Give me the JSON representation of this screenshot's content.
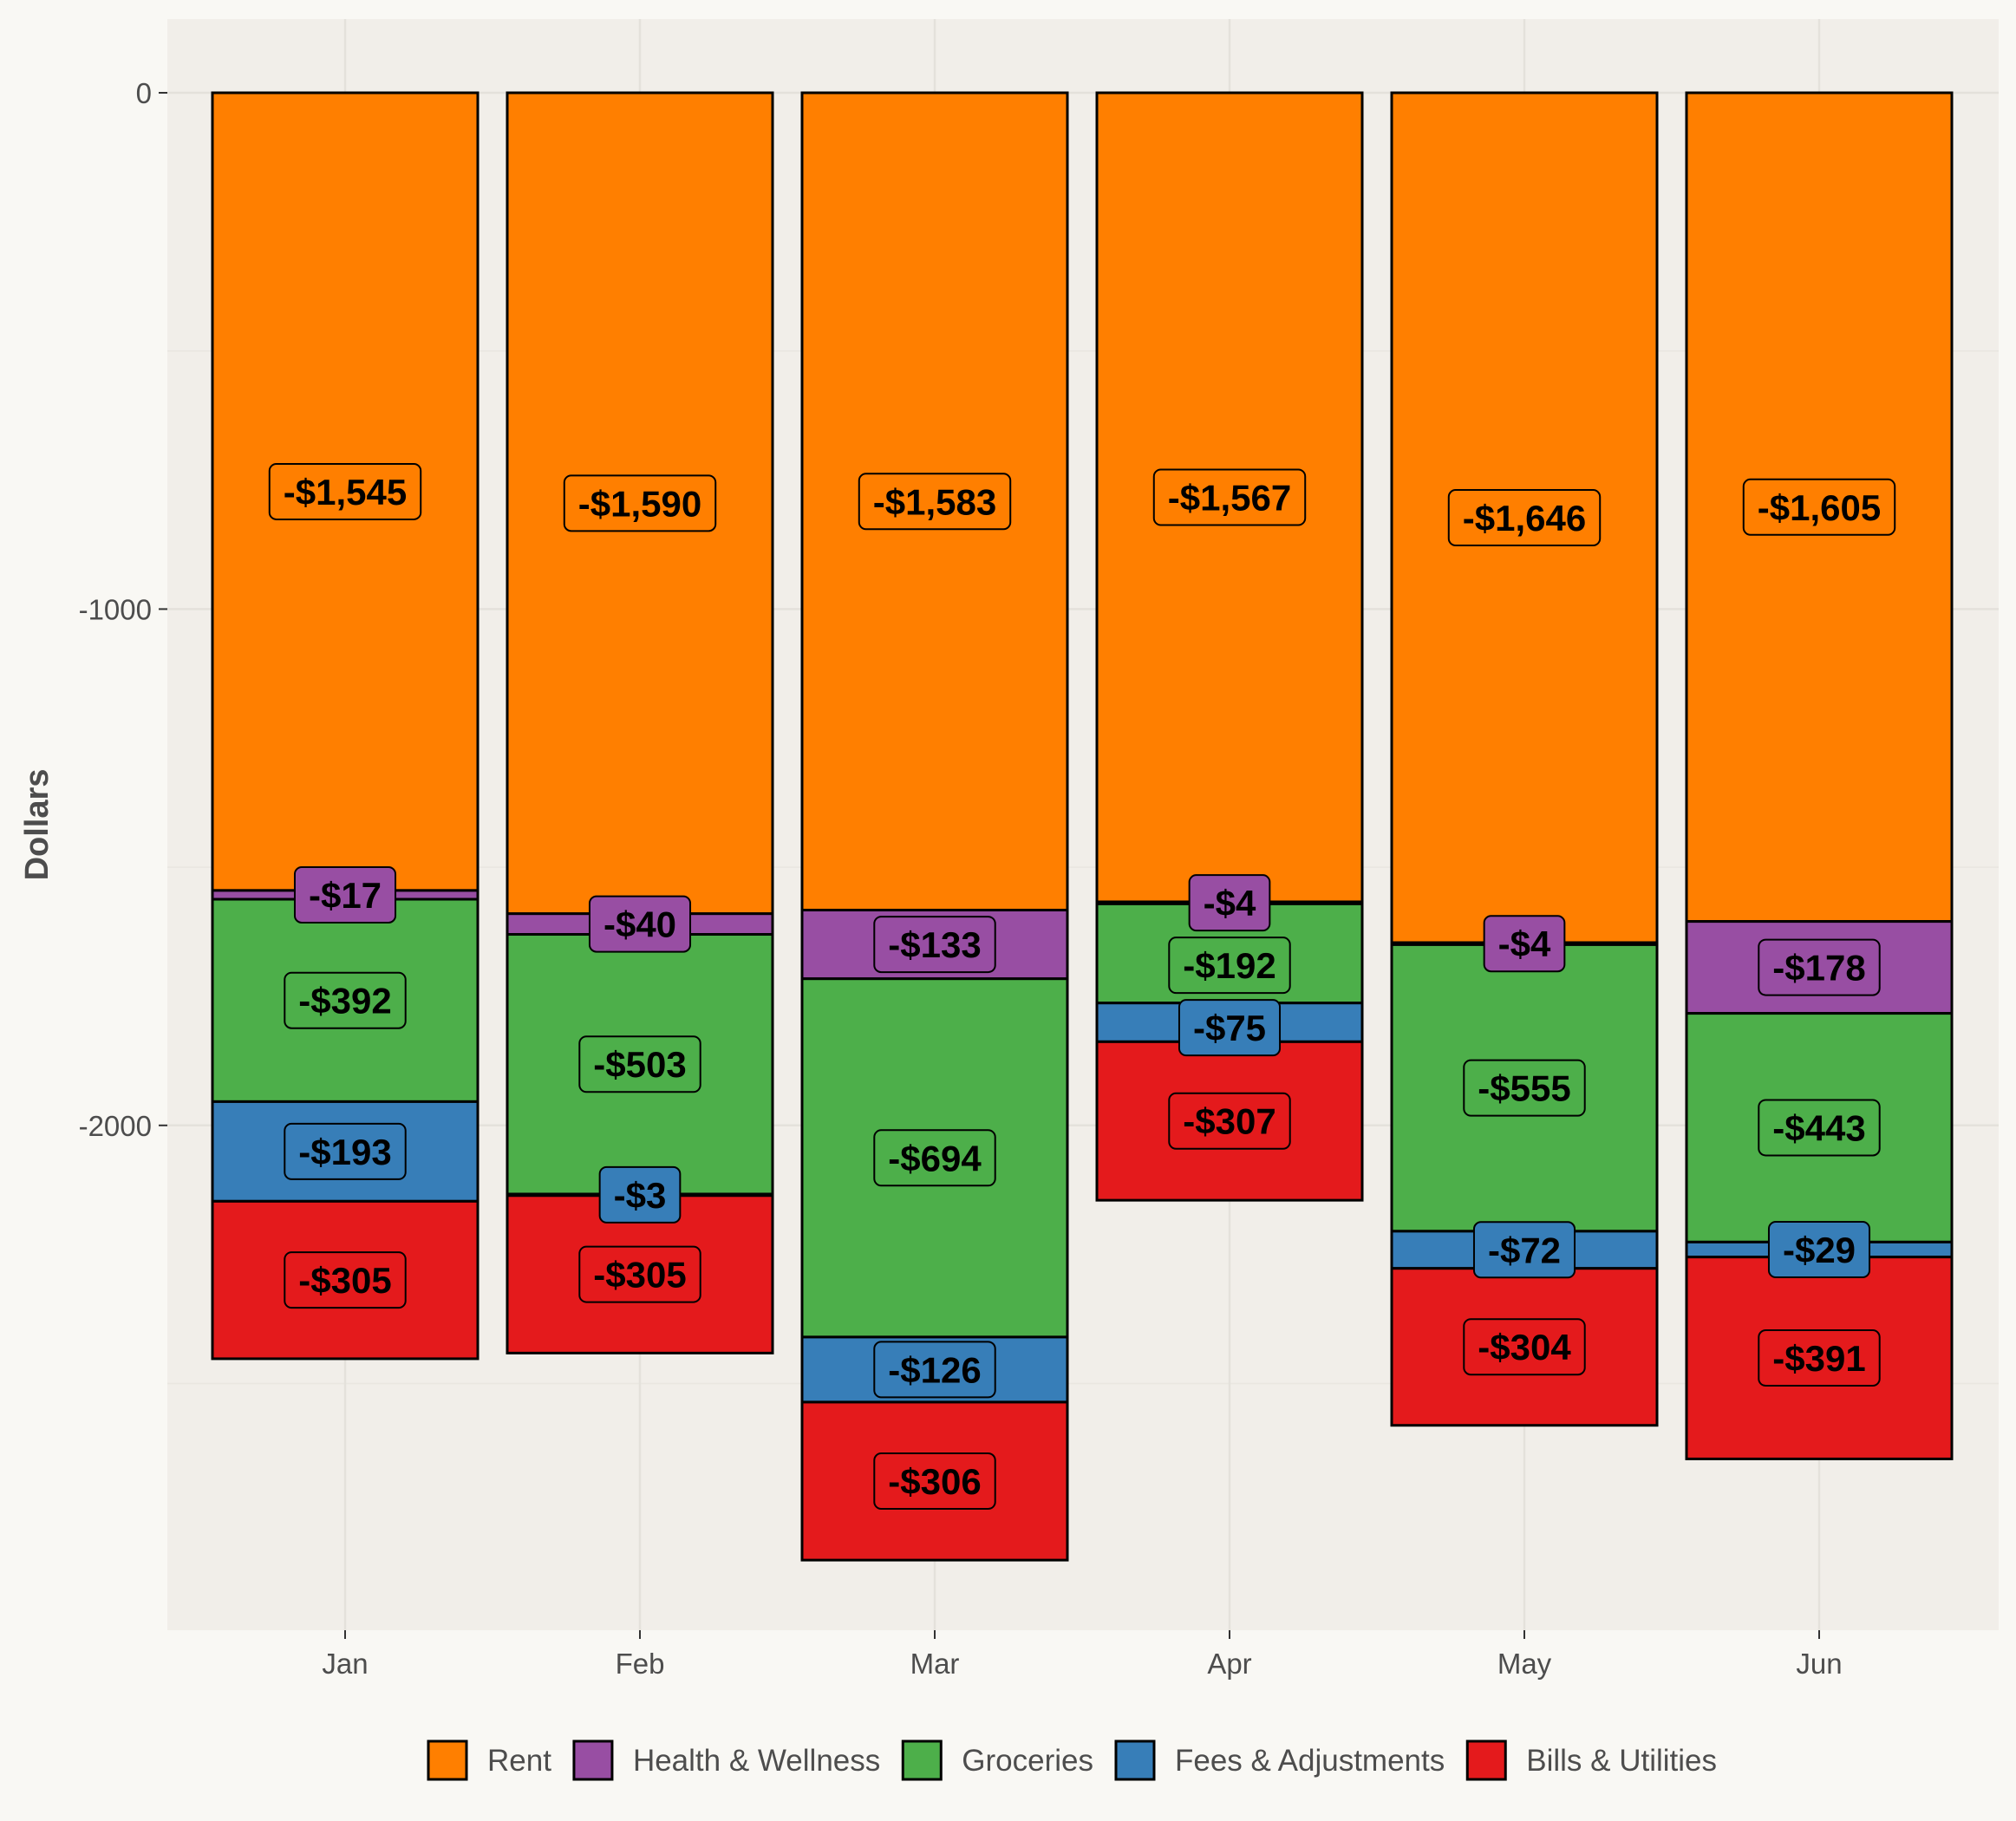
{
  "chart_data": {
    "type": "bar",
    "stacked": true,
    "title": "",
    "xlabel": "",
    "ylabel": "Dollars",
    "ylim": [
      -2975,
      135
    ],
    "yticks": [
      0,
      -1000,
      -2000
    ],
    "grid": true,
    "legend_position": "bottom",
    "categories": [
      "Jan",
      "Feb",
      "Mar",
      "Apr",
      "May",
      "Jun"
    ],
    "series": [
      {
        "name": "Rent",
        "color": "#ff7f00",
        "values": [
          -1545,
          -1590,
          -1583,
          -1567,
          -1646,
          -1605
        ],
        "labels": [
          "-$1,545",
          "-$1,590",
          "-$1,583",
          "-$1,567",
          "-$1,646",
          "-$1,605"
        ]
      },
      {
        "name": "Health & Wellness",
        "color": "#984ea3",
        "values": [
          -17,
          -40,
          -133,
          -4,
          -4,
          -178
        ],
        "labels": [
          "-$17",
          "-$40",
          "-$133",
          "-$4",
          "-$4",
          "-$178"
        ]
      },
      {
        "name": "Groceries",
        "color": "#4daf4a",
        "values": [
          -392,
          -503,
          -694,
          -192,
          -555,
          -443
        ],
        "labels": [
          "-$392",
          "-$503",
          "-$694",
          "-$192",
          "-$555",
          "-$443"
        ]
      },
      {
        "name": "Fees & Adjustments",
        "color": "#377eb8",
        "values": [
          -193,
          -3,
          -126,
          -75,
          -72,
          -29
        ],
        "labels": [
          "-$193",
          "-$3",
          "-$126",
          "-$75",
          "-$72",
          "-$29"
        ]
      },
      {
        "name": "Bills & Utilities",
        "color": "#e41a1c",
        "values": [
          -305,
          -305,
          -306,
          -307,
          -304,
          -391
        ],
        "labels": [
          "-$305",
          "-$305",
          "-$306",
          "-$307",
          "-$304",
          "-$391"
        ]
      }
    ]
  }
}
